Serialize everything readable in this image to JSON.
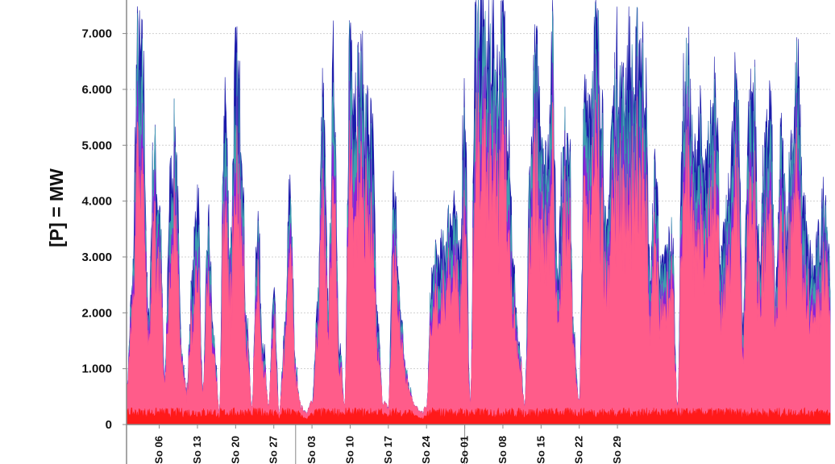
{
  "chart_data": {
    "type": "area",
    "stacked": true,
    "ylabel": "[P]  = MW",
    "ylim": [
      0,
      7600
    ],
    "yticks": [
      0,
      1000,
      2000,
      3000,
      4000,
      5000,
      6000,
      7000
    ],
    "ytick_labels": [
      "0",
      "1.000",
      "2.000",
      "3.000",
      "4.000",
      "5.000",
      "6.000",
      "7.000"
    ],
    "grid": true,
    "xtick_labels": [
      "So 06",
      "So 13",
      "So 20",
      "So 27",
      "So 03",
      "So 10",
      "So 17",
      "So 24",
      "So 01",
      "So 08",
      "So 15",
      "So 22",
      "So 29"
    ],
    "x_day_range": [
      0,
      129
    ],
    "xtick_days": [
      6,
      13,
      20,
      27,
      34,
      41,
      48,
      55,
      62,
      69,
      76,
      83,
      90
    ],
    "month_boundaries": [
      31,
      62
    ],
    "colors": {
      "series0": "#ff1a1a",
      "series1": "#ff5c8a",
      "series2": "#8a22d8",
      "series3": "#3e9eb0",
      "series4": "#1a1aaa"
    },
    "series": [
      {
        "name": "",
        "role": "base",
        "fraction": 0.06
      },
      {
        "name": "",
        "role": "main",
        "fraction": 0.62
      },
      {
        "name": "",
        "role": "band2",
        "fraction": 0.09
      },
      {
        "name": "",
        "role": "band3",
        "fraction": 0.13
      },
      {
        "name": "",
        "role": "band4",
        "fraction": 0.1
      }
    ],
    "daily_total": [
      600,
      2300,
      6500,
      6300,
      1800,
      4800,
      3900,
      800,
      4200,
      5100,
      1500,
      600,
      2400,
      4200,
      600,
      3500,
      1500,
      200,
      5900,
      3100,
      6200,
      5600,
      1800,
      300,
      3700,
      1500,
      300,
      2200,
      200,
      1600,
      4200,
      1000,
      300,
      200,
      400,
      2000,
      5600,
      2200,
      6300,
      1500,
      300,
      7100,
      6000,
      6100,
      5400,
      5100,
      1800,
      400,
      300,
      4200,
      2400,
      1200,
      600,
      300,
      200,
      300,
      2600,
      2900,
      3000,
      3500,
      4000,
      2800,
      5900,
      300,
      6900,
      7300,
      6400,
      6900,
      6100,
      7000,
      5600,
      2600,
      1300,
      300,
      4500,
      6300,
      5500,
      4500,
      6700,
      2900,
      4600,
      5600,
      1500,
      400,
      5600,
      5900,
      6800,
      6200,
      3100,
      5400,
      6400,
      5700,
      6500,
      5800,
      6800,
      6300,
      2600,
      4500,
      2600,
      3000,
      3300,
      300,
      5700,
      6100,
      4500,
      5300,
      4200,
      5000,
      6400,
      2800,
      3500,
      4800,
      6400,
      1800,
      5300,
      6000,
      3000,
      4600,
      5700,
      2200,
      4900,
      3700,
      5100,
      6100,
      4000,
      3000,
      2700,
      3200,
      4100,
      2900
    ]
  }
}
